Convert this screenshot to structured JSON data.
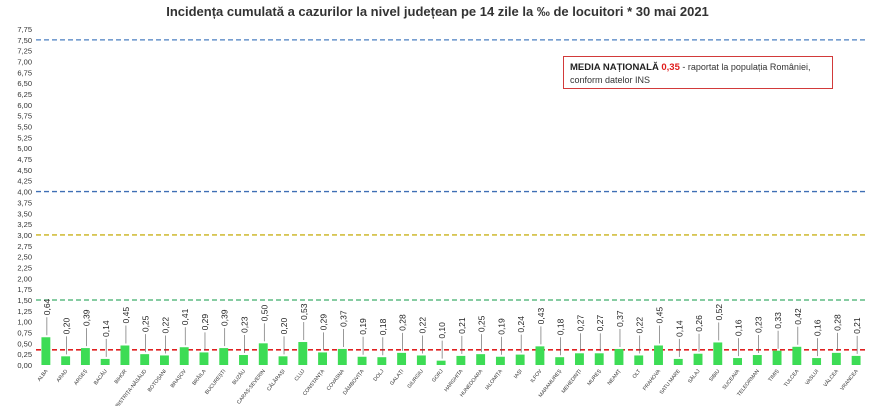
{
  "chart_data": {
    "type": "bar",
    "title": "Incidența cumulată a cazurilor la nivel județean pe 14 zile la ‰ de locuitori *  30 mai 2021",
    "categories": [
      "ALBA",
      "ARAD",
      "ARGEȘ",
      "BACĂU",
      "BIHOR",
      "BISTRIȚA-NĂSĂUD",
      "BOTOȘANI",
      "BRAȘOV",
      "BRĂILA",
      "BUCUREȘTI",
      "BUZĂU",
      "CARAȘ-SEVERIN",
      "CĂLĂRAȘI",
      "CLUJ",
      "CONSTANȚA",
      "COVASNA",
      "DÂMBOVIȚA",
      "DOLJ",
      "GALAȚI",
      "GIURGIU",
      "GORJ",
      "HARGHITA",
      "HUNEDOARA",
      "IALOMIȚA",
      "IAȘI",
      "ILFOV",
      "MARAMUREȘ",
      "MEHEDINȚI",
      "MUREȘ",
      "NEAMȚ",
      "OLT",
      "PRAHOVA",
      "SATU MARE",
      "SĂLAJ",
      "SIBIU",
      "SUCEAVA",
      "TELEORMAN",
      "TIMIȘ",
      "TULCEA",
      "VASLUI",
      "VÂLCEA",
      "VRANCEA"
    ],
    "values": [
      0.64,
      0.2,
      0.39,
      0.14,
      0.45,
      0.25,
      0.22,
      0.41,
      0.29,
      0.39,
      0.23,
      0.5,
      0.2,
      0.53,
      0.29,
      0.37,
      0.19,
      0.18,
      0.28,
      0.22,
      0.1,
      0.21,
      0.25,
      0.19,
      0.24,
      0.43,
      0.18,
      0.27,
      0.27,
      0.37,
      0.22,
      0.45,
      0.14,
      0.26,
      0.52,
      0.16,
      0.23,
      0.33,
      0.42,
      0.16,
      0.28,
      0.21
    ],
    "value_labels": [
      "0,64",
      "0,20",
      "0,39",
      "0,14",
      "0,45",
      "0,25",
      "0,22",
      "0,41",
      "0,29",
      "0,39",
      "0,23",
      "0,50",
      "0,20",
      "0,53",
      "0,29",
      "0,37",
      "0,19",
      "0,18",
      "0,28",
      "0,22",
      "0,10",
      "0,21",
      "0,25",
      "0,19",
      "0,24",
      "0,43",
      "0,18",
      "0,27",
      "0,27",
      "0,37",
      "0,22",
      "0,45",
      "0,14",
      "0,26",
      "0,52",
      "0,16",
      "0,23",
      "0,33",
      "0,42",
      "0,16",
      "0,28",
      "0,21"
    ],
    "ylim": [
      0,
      7.75
    ],
    "ytick_step": 0.25,
    "grid": false,
    "reference_lines": [
      {
        "value": 7.5,
        "color": "#4a7fc1",
        "style": "dashed"
      },
      {
        "value": 4.0,
        "color": "#3f6fb5",
        "style": "dashed"
      },
      {
        "value": 3.0,
        "color": "#c9b21c",
        "style": "dashed"
      },
      {
        "value": 1.5,
        "color": "#3fae6a",
        "style": "dashed"
      },
      {
        "value": 0.35,
        "color": "#e02020",
        "style": "dashed"
      }
    ],
    "bar_color": "#3ddc55",
    "national_average": {
      "label": "MEDIA NAȚIONALĂ",
      "value": "0,35",
      "note": "- raportat la populația României, conform datelor INS",
      "color": "#e01b1b"
    }
  }
}
